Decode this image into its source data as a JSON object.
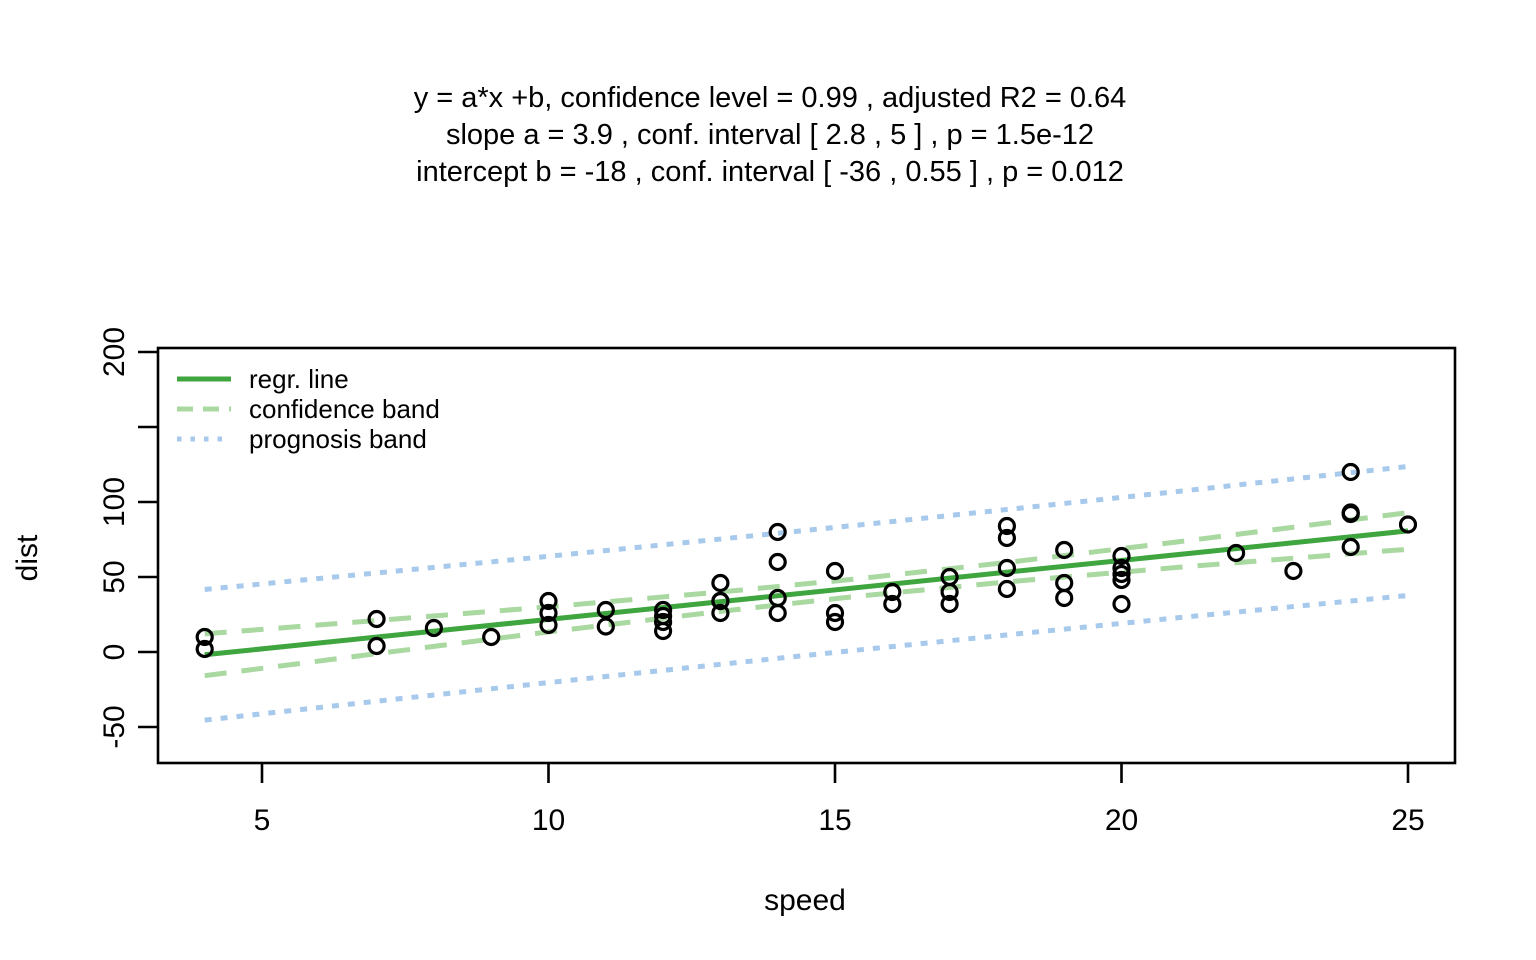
{
  "title": {
    "line1": "y = a*x +b, confidence level =  0.99 , adjusted R2 =  0.64",
    "line2": "slope a =  3.9 , conf. interval [ 2.8 , 5 ] , p =  1.5e-12",
    "line3": "intercept b =  -18 , conf. interval [ -36 , 0.55 ] , p =  0.012"
  },
  "axes": {
    "x": {
      "label": "speed",
      "ticks": [
        {
          "value": 5,
          "label": "5"
        },
        {
          "value": 10,
          "label": "10"
        },
        {
          "value": 15,
          "label": "15"
        },
        {
          "value": 20,
          "label": "20"
        },
        {
          "value": 25,
          "label": "25"
        }
      ]
    },
    "y": {
      "label": "dist",
      "ticks": [
        {
          "value": -50,
          "label": "-50"
        },
        {
          "value": 0,
          "label": "0"
        },
        {
          "value": 50,
          "label": "50"
        },
        {
          "value": 100,
          "label": "100"
        },
        {
          "value": 150,
          "label": ""
        },
        {
          "value": 200,
          "label": "200"
        }
      ]
    }
  },
  "legend": {
    "items": [
      {
        "label": "regr. line",
        "style": "solid",
        "color": "#3FA53F"
      },
      {
        "label": "confidence band",
        "style": "dashed",
        "color": "#A9D8A1"
      },
      {
        "label": "prognosis band",
        "style": "dotted",
        "color": "#A7C9EC"
      }
    ]
  },
  "colors": {
    "regression": "#3FA53F",
    "confidence": "#A9D8A1",
    "prognosis": "#A7C9EC",
    "points": "#000000",
    "frame": "#000000",
    "background": "#FFFFFF"
  },
  "chart_data": {
    "type": "scatter",
    "title": "y = a*x +b, confidence level = 0.99 , adjusted R2 = 0.64",
    "subtitle": [
      "slope a = 3.9 , conf. interval [ 2.8 , 5 ] , p = 1.5e-12",
      "intercept b = -18 , conf. interval [ -36 , 0.55 ] , p = 0.012"
    ],
    "xlabel": "speed",
    "ylabel": "dist",
    "xlim": [
      3.2,
      25.8
    ],
    "ylim": [
      -74,
      203
    ],
    "x_ticks": [
      5,
      10,
      15,
      20,
      25
    ],
    "y_ticks": [
      -50,
      0,
      50,
      100,
      150,
      200
    ],
    "grid": false,
    "legend_position": "top-left",
    "points": {
      "speed": [
        4,
        4,
        7,
        7,
        8,
        9,
        10,
        10,
        10,
        11,
        11,
        12,
        12,
        12,
        12,
        13,
        13,
        13,
        13,
        14,
        14,
        14,
        14,
        15,
        15,
        15,
        16,
        16,
        17,
        17,
        17,
        18,
        18,
        18,
        18,
        19,
        19,
        19,
        20,
        20,
        20,
        20,
        20,
        22,
        23,
        24,
        24,
        24,
        24,
        25
      ],
      "dist": [
        2,
        10,
        4,
        22,
        16,
        10,
        18,
        26,
        34,
        17,
        28,
        14,
        20,
        24,
        28,
        26,
        34,
        34,
        46,
        26,
        36,
        60,
        80,
        20,
        26,
        54,
        32,
        40,
        32,
        40,
        50,
        42,
        56,
        76,
        84,
        36,
        46,
        68,
        32,
        48,
        52,
        56,
        64,
        66,
        54,
        70,
        92,
        93,
        120,
        85
      ]
    },
    "regression": {
      "slope": 3.9324,
      "intercept": -17.579,
      "x_start": 4,
      "x_end": 25,
      "confidence_level": 0.99,
      "adjusted_r2": 0.64,
      "slope_conf_interval": [
        2.8,
        5
      ],
      "slope_p": "1.5e-12",
      "intercept_conf_interval": [
        -36,
        0.55
      ],
      "intercept_p": 0.012
    },
    "confidence_band": [
      {
        "x": 4,
        "lo": -15.8,
        "hi": 12.1
      },
      {
        "x": 7,
        "lo": -1.1,
        "hi": 21.0
      },
      {
        "x": 10,
        "lo": 13.4,
        "hi": 30.1
      },
      {
        "x": 13,
        "lo": 27.1,
        "hi": 40.0
      },
      {
        "x": 15.4,
        "lo": 37.2,
        "hi": 48.8
      },
      {
        "x": 18,
        "lo": 46.7,
        "hi": 59.7
      },
      {
        "x": 21,
        "lo": 56.5,
        "hi": 73.5
      },
      {
        "x": 25,
        "lo": 68.5,
        "hi": 92.9
      }
    ],
    "prognosis_band": [
      {
        "x": 4,
        "lo": -45.4,
        "hi": 41.7
      },
      {
        "x": 7,
        "lo": -32.8,
        "hi": 52.7
      },
      {
        "x": 10,
        "lo": -20.4,
        "hi": 63.8
      },
      {
        "x": 13,
        "lo": -8.2,
        "hi": 75.3
      },
      {
        "x": 15.4,
        "lo": 1.3,
        "hi": 84.6
      },
      {
        "x": 18,
        "lo": 11.4,
        "hi": 95.0
      },
      {
        "x": 21,
        "lo": 22.9,
        "hi": 107.1
      },
      {
        "x": 25,
        "lo": 37.7,
        "hi": 123.7
      }
    ],
    "point_style": "open-circle"
  }
}
